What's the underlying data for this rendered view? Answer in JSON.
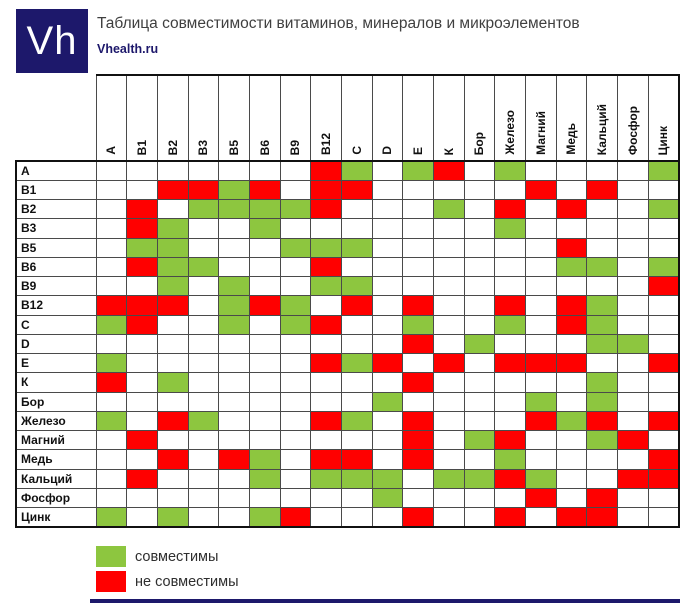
{
  "logo": {
    "text": "Vh"
  },
  "header": {
    "title": "Таблица совместимости витаминов, минералов и микроэлементов",
    "site": "Vhealth.ru"
  },
  "legend": {
    "compatible_label": "совместимы",
    "incompatible_label": "не совместимы"
  },
  "colors": {
    "compatible": "#8DC63F",
    "incompatible": "#FF0000",
    "logo": "#1D186B",
    "bottom_bar": "#1D186B"
  },
  "chart_data": {
    "type": "heatmap",
    "title": "Таблица совместимости витаминов, минералов и микроэлементов",
    "legend": [
      {
        "value": "g",
        "label": "совместимы"
      },
      {
        "value": "r",
        "label": "не совместимы"
      },
      {
        "value": "",
        "label": "нейтрально (пустая ячейка)"
      }
    ],
    "categories": [
      "А",
      "В1",
      "В2",
      "В3",
      "В5",
      "В6",
      "В9",
      "В12",
      "С",
      "D",
      "Е",
      "К",
      "Бор",
      "Железо",
      "Магний",
      "Медь",
      "Кальций",
      "Фосфор",
      "Цинк"
    ],
    "matrix": [
      [
        "",
        "",
        "",
        "",
        "",
        "",
        "",
        "r",
        "g",
        "",
        "g",
        "r",
        "",
        "g",
        "",
        "",
        "",
        "",
        "g"
      ],
      [
        "",
        "",
        "r",
        "r",
        "g",
        "r",
        "",
        "r",
        "r",
        "",
        "",
        "",
        "",
        "",
        "r",
        "",
        "r",
        "",
        ""
      ],
      [
        "",
        "r",
        "",
        "g",
        "g",
        "g",
        "g",
        "r",
        "",
        "",
        "",
        "g",
        "",
        "r",
        "",
        "r",
        "",
        "",
        "g"
      ],
      [
        "",
        "r",
        "g",
        "",
        "",
        "g",
        "",
        "",
        "",
        "",
        "",
        "",
        "",
        "g",
        "",
        "",
        "",
        "",
        ""
      ],
      [
        "",
        "g",
        "g",
        "",
        "",
        "",
        "g",
        "g",
        "g",
        "",
        "",
        "",
        "",
        "",
        "",
        "r",
        "",
        "",
        ""
      ],
      [
        "",
        "r",
        "g",
        "g",
        "",
        "",
        "",
        "r",
        "",
        "",
        "",
        "",
        "",
        "",
        "",
        "g",
        "g",
        "",
        "g"
      ],
      [
        "",
        "",
        "g",
        "",
        "g",
        "",
        "",
        "g",
        "g",
        "",
        "",
        "",
        "",
        "",
        "",
        "",
        "",
        "",
        "r"
      ],
      [
        "r",
        "r",
        "r",
        "",
        "g",
        "r",
        "g",
        "",
        "r",
        "",
        "r",
        "",
        "",
        "r",
        "",
        "r",
        "g",
        "",
        ""
      ],
      [
        "g",
        "r",
        "",
        "",
        "g",
        "",
        "g",
        "r",
        "",
        "",
        "g",
        "",
        "",
        "g",
        "",
        "r",
        "g",
        "",
        ""
      ],
      [
        "",
        "",
        "",
        "",
        "",
        "",
        "",
        "",
        "",
        "",
        "r",
        "",
        "g",
        "",
        "",
        "",
        "g",
        "g",
        ""
      ],
      [
        "g",
        "",
        "",
        "",
        "",
        "",
        "",
        "r",
        "g",
        "r",
        "",
        "r",
        "",
        "r",
        "r",
        "r",
        "",
        "",
        "r"
      ],
      [
        "r",
        "",
        "g",
        "",
        "",
        "",
        "",
        "",
        "",
        "",
        "r",
        "",
        "",
        "",
        "",
        "",
        "g",
        "",
        ""
      ],
      [
        "",
        "",
        "",
        "",
        "",
        "",
        "",
        "",
        "",
        "g",
        "",
        "",
        "",
        "",
        "g",
        "",
        "g",
        "",
        ""
      ],
      [
        "g",
        "",
        "r",
        "g",
        "",
        "",
        "",
        "r",
        "g",
        "",
        "r",
        "",
        "",
        "",
        "r",
        "g",
        "r",
        "",
        "r"
      ],
      [
        "",
        "r",
        "",
        "",
        "",
        "",
        "",
        "",
        "",
        "",
        "r",
        "",
        "g",
        "r",
        "",
        "",
        "g",
        "r",
        ""
      ],
      [
        "",
        "",
        "r",
        "",
        "r",
        "g",
        "",
        "r",
        "r",
        "",
        "r",
        "",
        "",
        "g",
        "",
        "",
        "",
        "",
        "r"
      ],
      [
        "",
        "r",
        "",
        "",
        "",
        "g",
        "",
        "g",
        "g",
        "g",
        "",
        "g",
        "g",
        "r",
        "g",
        "",
        "",
        "r",
        "r"
      ],
      [
        "",
        "",
        "",
        "",
        "",
        "",
        "",
        "",
        "",
        "g",
        "",
        "",
        "",
        "",
        "r",
        "",
        "r",
        "",
        ""
      ],
      [
        "g",
        "",
        "g",
        "",
        "",
        "g",
        "r",
        "",
        "",
        "",
        "r",
        "",
        "",
        "r",
        "",
        "r",
        "r",
        "",
        ""
      ]
    ]
  }
}
